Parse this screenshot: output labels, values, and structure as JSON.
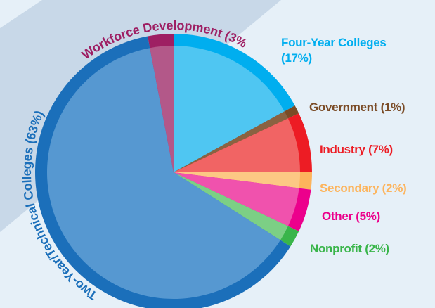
{
  "chart_data": {
    "type": "pie",
    "categories": [
      "Four-Year Colleges",
      "Government",
      "Industry",
      "Secondary",
      "Other",
      "Nonprofit",
      "Two-Year/Technical Colleges",
      "Workforce Development"
    ],
    "values": [
      17,
      1,
      7,
      2,
      5,
      2,
      63,
      3
    ],
    "value_labels": [
      "(17%)",
      "(1%)",
      "(7%)",
      "(2%)",
      "(5%)",
      "(2%)",
      "(63%)",
      "(3%)"
    ],
    "colors": [
      "#00aeef",
      "#7a4b26",
      "#ed1c24",
      "#fdb45c",
      "#ec008c",
      "#39b54a",
      "#1b6fba",
      "#9e1f63"
    ],
    "inner_colors": [
      "#4fc6f2",
      "#8a6241",
      "#f16464",
      "#fcc884",
      "#f052ad",
      "#7ccf85",
      "#5698d1",
      "#b35889"
    ],
    "label_colors": [
      "#00aeef",
      "#7a4b26",
      "#ed1c24",
      "#fdb45c",
      "#ec008c",
      "#39b54a",
      "#1b6fba",
      "#9e1f63"
    ]
  }
}
